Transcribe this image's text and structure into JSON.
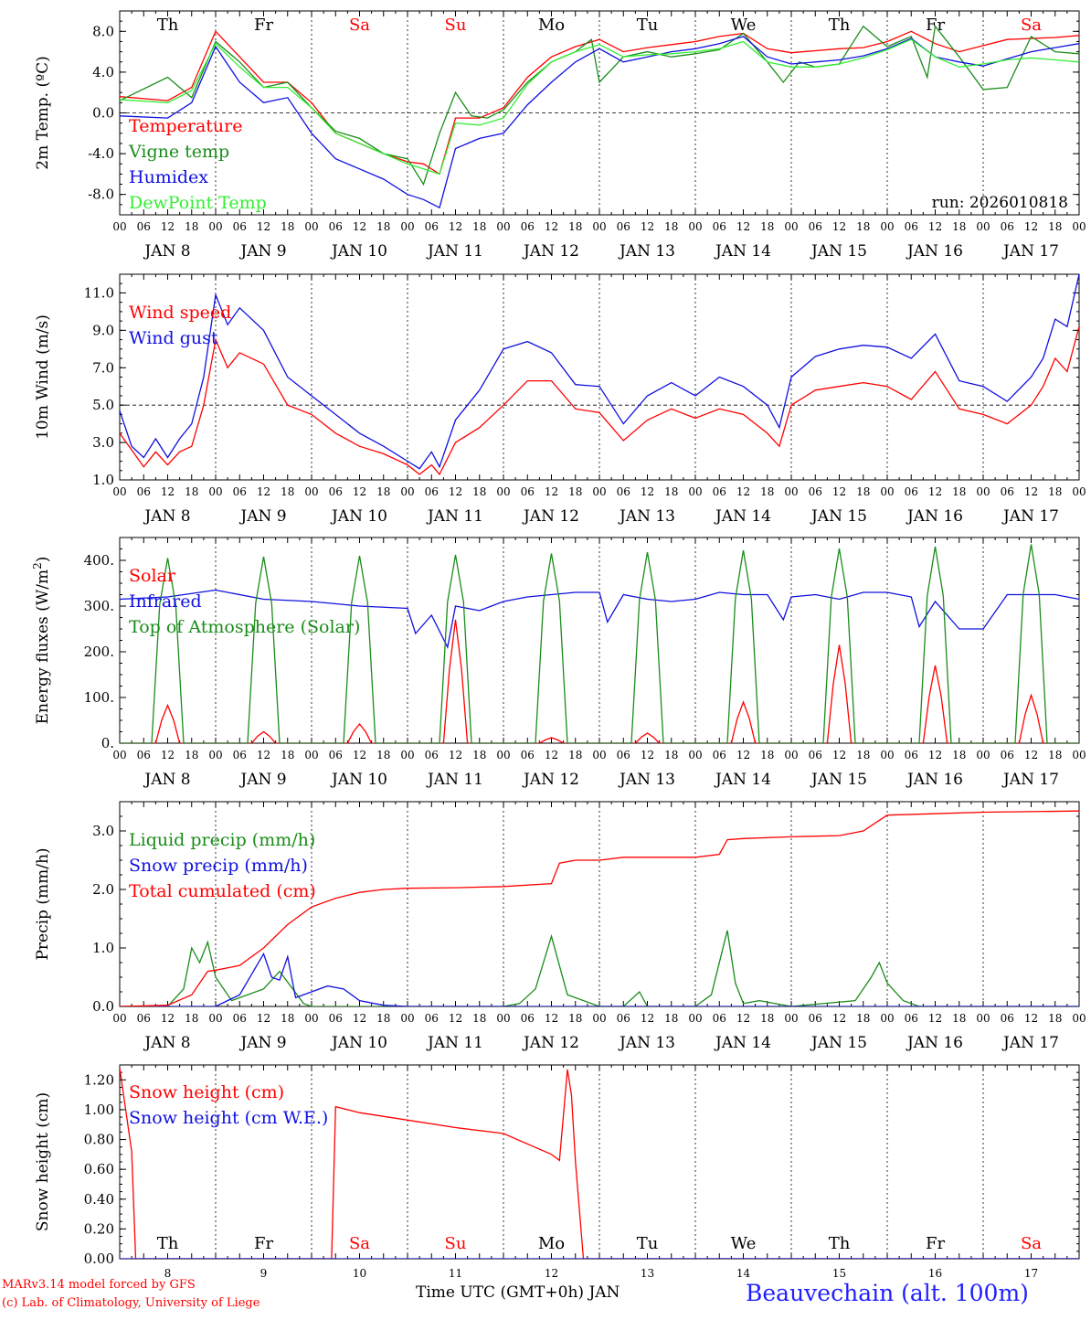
{
  "panel_colors": {
    "red": "#ff0000",
    "green": "#1a8c1a",
    "blue": "#1010e0",
    "lightgreen": "#33ee33",
    "black": "#000000"
  },
  "day_names": [
    "Th",
    "Fr",
    "Sa",
    "Su",
    "Mo",
    "Tu",
    "We",
    "Th",
    "Fr",
    "Sa"
  ],
  "weekend_flags": [
    false,
    false,
    true,
    true,
    false,
    false,
    false,
    false,
    false,
    true
  ],
  "day_numbers": [
    "8",
    "9",
    "10",
    "11",
    "12",
    "13",
    "14",
    "15",
    "16",
    "17"
  ],
  "hour_labels": [
    "00",
    "06",
    "12",
    "18"
  ],
  "hour_end_label": "00",
  "date_labels": [
    "JAN  8",
    "JAN  9",
    "JAN 10",
    "JAN 11",
    "JAN 12",
    "JAN 13",
    "JAN 14",
    "JAN 15",
    "JAN 16",
    "JAN 17"
  ],
  "footer": {
    "credit_line1": "MARv3.14 model forced by GFS",
    "credit_line2": "(c) Lab. of Climatology, University of Liege",
    "xlabel": "Time UTC (GMT+0h) JAN",
    "station": "Beauvechain (alt. 100m)"
  },
  "chart_data": [
    {
      "type": "line",
      "title": "2m Temp.",
      "ylabel": "2m Temp. (ºC)",
      "ylim": [
        -10,
        10
      ],
      "yticks": [
        -8,
        -4,
        0,
        4,
        8
      ],
      "ytick_labels": [
        "-8.0",
        "-4.0",
        "0.0",
        "4.0",
        "8.0"
      ],
      "ref_line": 0,
      "run_label": "run: 2026010818",
      "x_unit": "hours since Jan 8 00 UTC",
      "series": [
        {
          "name": "Temperature",
          "color": "red",
          "x": [
            0,
            12,
            18,
            24,
            30,
            36,
            42,
            48,
            54,
            60,
            66,
            72,
            76,
            80,
            84,
            90,
            96,
            102,
            108,
            114,
            120,
            126,
            132,
            138,
            144,
            150,
            156,
            162,
            168,
            174,
            180,
            186,
            192,
            198,
            204,
            210,
            216,
            222,
            228,
            234,
            240
          ],
          "y": [
            1.6,
            1.2,
            2.5,
            8.0,
            5.5,
            3.0,
            3.0,
            1.0,
            -2.0,
            -3.0,
            -4.0,
            -4.8,
            -5.0,
            -6.0,
            -0.5,
            -0.5,
            0.5,
            3.5,
            5.5,
            6.5,
            7.2,
            6.0,
            6.4,
            6.7,
            7.0,
            7.5,
            7.8,
            6.3,
            5.9,
            6.1,
            6.3,
            6.4,
            7.0,
            8.0,
            6.8,
            6.0,
            6.6,
            7.2,
            7.3,
            7.4,
            7.6
          ]
        },
        {
          "name": "Vigne temp",
          "color": "green",
          "x": [
            0,
            12,
            18,
            24,
            30,
            36,
            42,
            48,
            54,
            60,
            66,
            72,
            76,
            80,
            84,
            88,
            92,
            96,
            102,
            108,
            114,
            118,
            120,
            126,
            132,
            138,
            144,
            150,
            156,
            162,
            166,
            170,
            174,
            180,
            186,
            192,
            198,
            202,
            204,
            210,
            216,
            222,
            228,
            234,
            240
          ],
          "y": [
            1.2,
            3.5,
            1.5,
            7.0,
            5.0,
            2.5,
            3.0,
            0.5,
            -1.8,
            -2.5,
            -4.0,
            -4.5,
            -7.0,
            -2.0,
            2.0,
            -0.3,
            -0.5,
            0.3,
            3.0,
            5.0,
            6.0,
            7.2,
            3.0,
            5.5,
            6.0,
            5.5,
            5.8,
            6.2,
            7.8,
            5.0,
            3.0,
            5.0,
            4.5,
            4.8,
            8.5,
            6.5,
            7.5,
            3.5,
            8.5,
            5.5,
            2.3,
            2.5,
            7.5,
            6.0,
            5.8
          ]
        },
        {
          "name": "Humidex",
          "color": "blue",
          "x": [
            0,
            12,
            18,
            24,
            30,
            36,
            42,
            48,
            54,
            60,
            66,
            72,
            76,
            80,
            84,
            90,
            96,
            102,
            108,
            114,
            120,
            126,
            132,
            138,
            144,
            150,
            156,
            162,
            168,
            174,
            180,
            186,
            192,
            198,
            204,
            210,
            216,
            222,
            228,
            234,
            240
          ],
          "y": [
            -0.3,
            -0.5,
            1.0,
            6.5,
            3.0,
            1.0,
            1.5,
            -2.0,
            -4.5,
            -5.5,
            -6.5,
            -8.0,
            -8.5,
            -9.3,
            -3.5,
            -2.5,
            -2.0,
            0.8,
            3.0,
            5.0,
            6.3,
            5.0,
            5.5,
            6.0,
            6.3,
            6.8,
            7.5,
            5.5,
            4.8,
            5.0,
            5.2,
            5.6,
            6.3,
            7.3,
            5.5,
            5.0,
            4.6,
            5.3,
            6.0,
            6.4,
            6.8
          ]
        },
        {
          "name": "DewPoint Temp",
          "color": "lightgreen",
          "x": [
            0,
            12,
            18,
            24,
            30,
            36,
            42,
            48,
            54,
            60,
            66,
            72,
            76,
            80,
            84,
            90,
            96,
            102,
            108,
            114,
            120,
            126,
            132,
            138,
            144,
            150,
            156,
            162,
            168,
            174,
            180,
            186,
            192,
            198,
            204,
            210,
            216,
            222,
            228,
            234,
            240
          ],
          "y": [
            1.3,
            1.0,
            2.2,
            6.8,
            4.5,
            2.5,
            2.5,
            0.5,
            -2.0,
            -3.0,
            -4.0,
            -5.0,
            -5.5,
            -6.0,
            -1.0,
            -1.2,
            -0.5,
            2.8,
            5.0,
            6.0,
            6.7,
            5.5,
            5.7,
            5.8,
            6.0,
            6.3,
            7.0,
            5.0,
            4.5,
            4.5,
            4.8,
            5.4,
            6.2,
            7.2,
            5.5,
            4.5,
            4.8,
            5.2,
            5.4,
            5.2,
            5.0
          ]
        }
      ]
    },
    {
      "type": "line",
      "title": "10m Wind",
      "ylabel": "10m Wind (m/s)",
      "ylim": [
        1,
        12
      ],
      "yticks": [
        1,
        3,
        5,
        7,
        9,
        11
      ],
      "ytick_labels": [
        "1.0",
        "3.0",
        "5.0",
        "7.0",
        "9.0",
        "11.0"
      ],
      "ref_line": 5,
      "series": [
        {
          "name": "Wind speed",
          "color": "red",
          "x": [
            0,
            3,
            6,
            9,
            12,
            15,
            18,
            21,
            24,
            27,
            30,
            36,
            42,
            48,
            54,
            60,
            66,
            72,
            75,
            78,
            80,
            84,
            90,
            96,
            102,
            108,
            114,
            120,
            126,
            132,
            138,
            144,
            150,
            156,
            162,
            165,
            168,
            174,
            180,
            186,
            192,
            198,
            204,
            210,
            216,
            222,
            228,
            231,
            234,
            237,
            240
          ],
          "y": [
            3.5,
            2.6,
            1.7,
            2.5,
            1.8,
            2.5,
            2.8,
            5.0,
            8.5,
            7.0,
            7.8,
            7.2,
            5.0,
            4.5,
            3.5,
            2.8,
            2.4,
            1.8,
            1.3,
            1.8,
            1.3,
            3.0,
            3.8,
            5.0,
            6.3,
            6.3,
            4.8,
            4.6,
            3.1,
            4.2,
            4.8,
            4.3,
            4.8,
            4.5,
            3.5,
            2.8,
            5.0,
            5.8,
            6.0,
            6.2,
            6.0,
            5.3,
            6.8,
            4.8,
            4.5,
            4.0,
            5.0,
            6.0,
            7.5,
            6.8,
            9.2
          ]
        },
        {
          "name": "Wind gust",
          "color": "blue",
          "x": [
            0,
            3,
            6,
            9,
            12,
            15,
            18,
            21,
            24,
            27,
            30,
            36,
            42,
            48,
            54,
            60,
            66,
            72,
            75,
            78,
            80,
            84,
            90,
            96,
            102,
            108,
            114,
            120,
            126,
            132,
            138,
            144,
            150,
            156,
            162,
            165,
            168,
            174,
            180,
            186,
            192,
            198,
            204,
            210,
            216,
            222,
            228,
            231,
            234,
            237,
            240
          ],
          "y": [
            4.7,
            2.8,
            2.2,
            3.2,
            2.2,
            3.2,
            4.0,
            6.5,
            10.9,
            9.3,
            10.2,
            9.0,
            6.5,
            5.5,
            4.5,
            3.5,
            2.8,
            2.0,
            1.6,
            2.5,
            1.7,
            4.2,
            5.8,
            8.0,
            8.4,
            7.8,
            6.1,
            6.0,
            4.0,
            5.5,
            6.2,
            5.5,
            6.5,
            6.0,
            5.0,
            3.8,
            6.5,
            7.6,
            8.0,
            8.2,
            8.1,
            7.5,
            8.8,
            6.3,
            6.0,
            5.2,
            6.5,
            7.5,
            9.6,
            9.2,
            12.0
          ]
        }
      ]
    },
    {
      "type": "line",
      "title": "Energy fluxes",
      "ylabel": "Energy fluxes (W/m²)",
      "ylabel_main": "Energy fluxes (W/m",
      "ylabel_sup": "2",
      "ylabel_end": ")",
      "ylim": [
        0,
        450
      ],
      "yticks": [
        0,
        100,
        200,
        300,
        400
      ],
      "ytick_labels": [
        "0.",
        "100.",
        "200.",
        "300.",
        "400."
      ],
      "ref_line": null,
      "series": [
        {
          "name": "Solar",
          "color": "red",
          "daily_peak": [
            83,
            25,
            42,
            270,
            12,
            22,
            90,
            215,
            170,
            105
          ],
          "peak_hour": 12
        },
        {
          "name": "Infrared",
          "color": "blue",
          "x": [
            0,
            12,
            24,
            36,
            48,
            60,
            72,
            74,
            78,
            82,
            84,
            90,
            96,
            102,
            108,
            114,
            120,
            122,
            126,
            132,
            138,
            144,
            150,
            156,
            162,
            166,
            168,
            174,
            180,
            186,
            192,
            198,
            200,
            204,
            210,
            216,
            222,
            228,
            234,
            240
          ],
          "y": [
            315,
            320,
            335,
            315,
            310,
            300,
            295,
            240,
            280,
            210,
            300,
            290,
            310,
            320,
            325,
            330,
            330,
            265,
            325,
            315,
            310,
            315,
            330,
            325,
            325,
            270,
            320,
            325,
            315,
            330,
            330,
            320,
            255,
            310,
            250,
            250,
            325,
            325,
            325,
            315
          ]
        },
        {
          "name": "Top of Atmosphere (Solar)",
          "color": "green",
          "daily_peak": [
            405,
            408,
            410,
            412,
            415,
            418,
            422,
            426,
            430,
            435
          ],
          "sunrise_hour": 8,
          "sunset_hour": 16
        }
      ]
    },
    {
      "type": "line",
      "title": "Precip",
      "ylabel": "Precip (mm/h)",
      "ylim": [
        0,
        3.5
      ],
      "yticks": [
        0,
        1,
        2,
        3
      ],
      "ytick_labels": [
        "0.0",
        "1.0",
        "2.0",
        "3.0"
      ],
      "ref_line": null,
      "series": [
        {
          "name": "Liquid precip (mm/h)",
          "color": "green",
          "x": [
            0,
            12,
            16,
            18,
            20,
            22,
            24,
            28,
            36,
            40,
            46,
            48,
            96,
            100,
            104,
            108,
            112,
            120,
            126,
            130,
            132,
            144,
            148,
            152,
            154,
            156,
            160,
            168,
            184,
            188,
            190,
            192,
            196,
            200,
            240
          ],
          "y": [
            0,
            0,
            0.3,
            1.0,
            0.75,
            1.1,
            0.5,
            0.1,
            0.3,
            0.6,
            0.05,
            0,
            0,
            0.05,
            0.3,
            1.2,
            0.2,
            0,
            0,
            0.25,
            0,
            0,
            0.2,
            1.3,
            0.4,
            0.05,
            0.1,
            0,
            0.1,
            0.5,
            0.75,
            0.4,
            0.1,
            0,
            0
          ]
        },
        {
          "name": "Snow precip (mm/h)",
          "color": "blue",
          "x": [
            0,
            24,
            30,
            33,
            36,
            38,
            40,
            42,
            44,
            48,
            52,
            56,
            60,
            66,
            72,
            240
          ],
          "y": [
            0,
            0,
            0.2,
            0.55,
            0.9,
            0.5,
            0.45,
            0.85,
            0.15,
            0.25,
            0.35,
            0.3,
            0.1,
            0.02,
            0,
            0
          ]
        },
        {
          "name": "Total cumulated (cm)",
          "color": "red",
          "x": [
            0,
            12,
            18,
            22,
            24,
            30,
            36,
            42,
            48,
            54,
            60,
            66,
            72,
            84,
            96,
            108,
            110,
            114,
            120,
            126,
            144,
            150,
            152,
            156,
            168,
            180,
            186,
            192,
            216,
            240
          ],
          "y": [
            0,
            0.02,
            0.2,
            0.6,
            0.62,
            0.7,
            1.0,
            1.4,
            1.7,
            1.85,
            1.95,
            2.0,
            2.02,
            2.03,
            2.05,
            2.1,
            2.45,
            2.5,
            2.5,
            2.55,
            2.55,
            2.6,
            2.85,
            2.87,
            2.9,
            2.92,
            3.0,
            3.27,
            3.32,
            3.34
          ]
        }
      ]
    },
    {
      "type": "line",
      "title": "Snow height",
      "ylabel": "Snow height (cm)",
      "ylim": [
        0,
        1.3
      ],
      "yticks": [
        0,
        0.2,
        0.4,
        0.6,
        0.8,
        1.0,
        1.2
      ],
      "ytick_labels": [
        "0.00",
        "0.20",
        "0.40",
        "0.60",
        "0.80",
        "1.00",
        "1.20"
      ],
      "ref_line": null,
      "series": [
        {
          "name": "Snow height (cm)",
          "color": "red",
          "x": [
            0,
            3,
            4,
            48,
            53,
            54,
            60,
            72,
            84,
            96,
            108,
            110,
            112,
            113,
            114,
            116,
            240
          ],
          "y": [
            1.28,
            0.72,
            0,
            0,
            0,
            1.02,
            0.98,
            0.93,
            0.88,
            0.84,
            0.7,
            0.66,
            1.27,
            1.1,
            0.65,
            0,
            0
          ]
        },
        {
          "name": "Snow height (cm W.E.)",
          "color": "blue",
          "x": [
            0,
            240
          ],
          "y": [
            0,
            0
          ]
        }
      ]
    }
  ]
}
